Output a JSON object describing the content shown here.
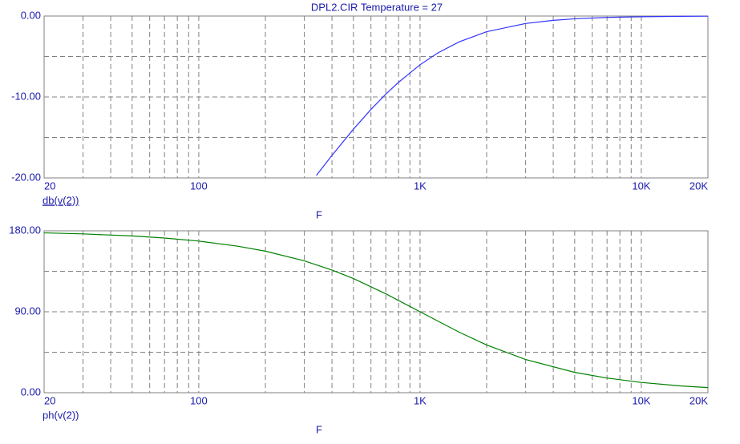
{
  "chart_data": [
    {
      "type": "line",
      "title": "DPL2.CIR Temperature = 27",
      "xlabel": "F",
      "log_x": true,
      "grid": true,
      "x": [
        340,
        400,
        500,
        600,
        700,
        800,
        1000,
        1200,
        1500,
        2000,
        3000,
        4000,
        5000,
        7000,
        10000,
        15000,
        20000
      ],
      "series": [
        {
          "name": "db(v(2))",
          "color": "#3333ff",
          "values": [
            -19.69,
            -17.21,
            -13.98,
            -11.54,
            -9.66,
            -8.18,
            -6.02,
            -4.58,
            -3.2,
            -1.94,
            -0.92,
            -0.53,
            -0.34,
            -0.17,
            -0.09,
            -0.04,
            -0.02
          ]
        }
      ],
      "xlim": [
        20,
        20000
      ],
      "xticks": [
        20,
        100,
        {
          "value": 1000,
          "label": "1K"
        },
        {
          "value": 10000,
          "label": "10K"
        },
        {
          "value": 20000,
          "label": "20K"
        }
      ],
      "ylim": [
        -20,
        0
      ],
      "yticks": [
        {
          "value": -20,
          "label": "-20.00"
        },
        {
          "value": -10,
          "label": "-10.00"
        },
        {
          "value": 0,
          "label": "0.00"
        }
      ]
    },
    {
      "type": "line",
      "xlabel": "F",
      "log_x": true,
      "grid": true,
      "x": [
        20,
        30,
        50,
        70,
        100,
        150,
        200,
        300,
        400,
        500,
        700,
        1000,
        1500,
        2000,
        3000,
        5000,
        7000,
        10000,
        15000,
        20000
      ],
      "series": [
        {
          "name": "ph(v(2))",
          "color": "#008000",
          "values": [
            177.7,
            176.6,
            174.3,
            172.0,
            168.6,
            162.9,
            157.4,
            146.6,
            136.4,
            126.9,
            110.0,
            90,
            67.4,
            53.1,
            36.9,
            22.6,
            16.3,
            11.4,
            7.6,
            5.7
          ]
        }
      ],
      "xlim": [
        20,
        20000
      ],
      "xticks": [
        20,
        100,
        {
          "value": 1000,
          "label": "1K"
        },
        {
          "value": 10000,
          "label": "10K"
        },
        {
          "value": 20000,
          "label": "20K"
        }
      ],
      "ylim": [
        0,
        180
      ],
      "yticks": [
        {
          "value": 0,
          "label": "0.00"
        },
        {
          "value": 90,
          "label": "90.00"
        },
        {
          "value": 180,
          "label": "180.00"
        }
      ]
    }
  ]
}
